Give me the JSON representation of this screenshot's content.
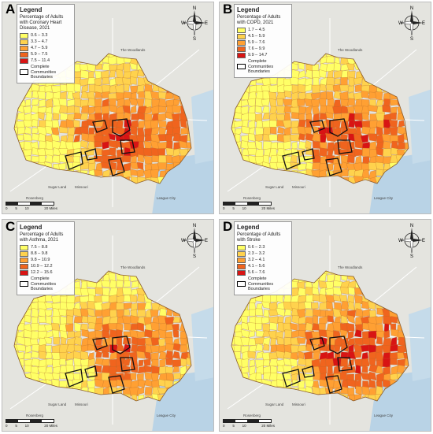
{
  "panels": [
    {
      "letter": "A",
      "legend_title": "Legend",
      "heading": "Percentage of Adults with Coronary Heart Disease, 2021",
      "classes": [
        {
          "label": "0.6 – 3.3",
          "color": "#ffff66"
        },
        {
          "label": "3.3 – 4.7",
          "color": "#ffd24d"
        },
        {
          "label": "4.7 – 5.9",
          "color": "#ffa033"
        },
        {
          "label": "5.9 – 7.5",
          "color": "#f0641e"
        },
        {
          "label": "7.5 – 11.4",
          "color": "#d81414"
        }
      ],
      "boundary_label": "Complete Communities Boundaries"
    },
    {
      "letter": "B",
      "legend_title": "Legend",
      "heading": "Percentage of Adults with COPD, 2021",
      "classes": [
        {
          "label": "1.7 – 4.5",
          "color": "#ffff66"
        },
        {
          "label": "4.5 – 5.9",
          "color": "#ffd24d"
        },
        {
          "label": "5.9 – 7.6",
          "color": "#ffa033"
        },
        {
          "label": "7.6 – 9.9",
          "color": "#f0641e"
        },
        {
          "label": "9.9 – 14.7",
          "color": "#d81414"
        }
      ],
      "boundary_label": "Complete Communities Boundaries"
    },
    {
      "letter": "C",
      "legend_title": "Legend",
      "heading": "Percentage of Adults with Asthma, 2021",
      "classes": [
        {
          "label": "7.5 – 8.8",
          "color": "#ffff66"
        },
        {
          "label": "8.8 – 9.8",
          "color": "#ffd24d"
        },
        {
          "label": "9.8 – 10.9",
          "color": "#ffa033"
        },
        {
          "label": "10.9 – 12.2",
          "color": "#f0641e"
        },
        {
          "label": "12.2 – 15.6",
          "color": "#d81414"
        }
      ],
      "boundary_label": "Complete Communities Boundaries"
    },
    {
      "letter": "D",
      "legend_title": "Legend",
      "heading": "Percentage of Adults with Stroke",
      "classes": [
        {
          "label": "0.6 – 2.3",
          "color": "#ffff66"
        },
        {
          "label": "2.3 – 3.2",
          "color": "#ffd24d"
        },
        {
          "label": "3.2 – 4.1",
          "color": "#ffa033"
        },
        {
          "label": "4.1 – 5.6",
          "color": "#f0641e"
        },
        {
          "label": "5.6 – 7.6",
          "color": "#d81414"
        }
      ],
      "boundary_label": "Complete Communities Boundaries"
    }
  ],
  "compass": {
    "n": "N",
    "s": "S",
    "e": "E",
    "w": "W"
  },
  "scale": {
    "ticks": [
      "0",
      "5",
      "10",
      "",
      "20 Miles"
    ]
  },
  "places": {
    "woodlands": "The Woodlands",
    "sugar_land": "Sugar Land",
    "rosenberg": "Rosenberg",
    "league_city": "League City",
    "missouri": "Missouri"
  }
}
